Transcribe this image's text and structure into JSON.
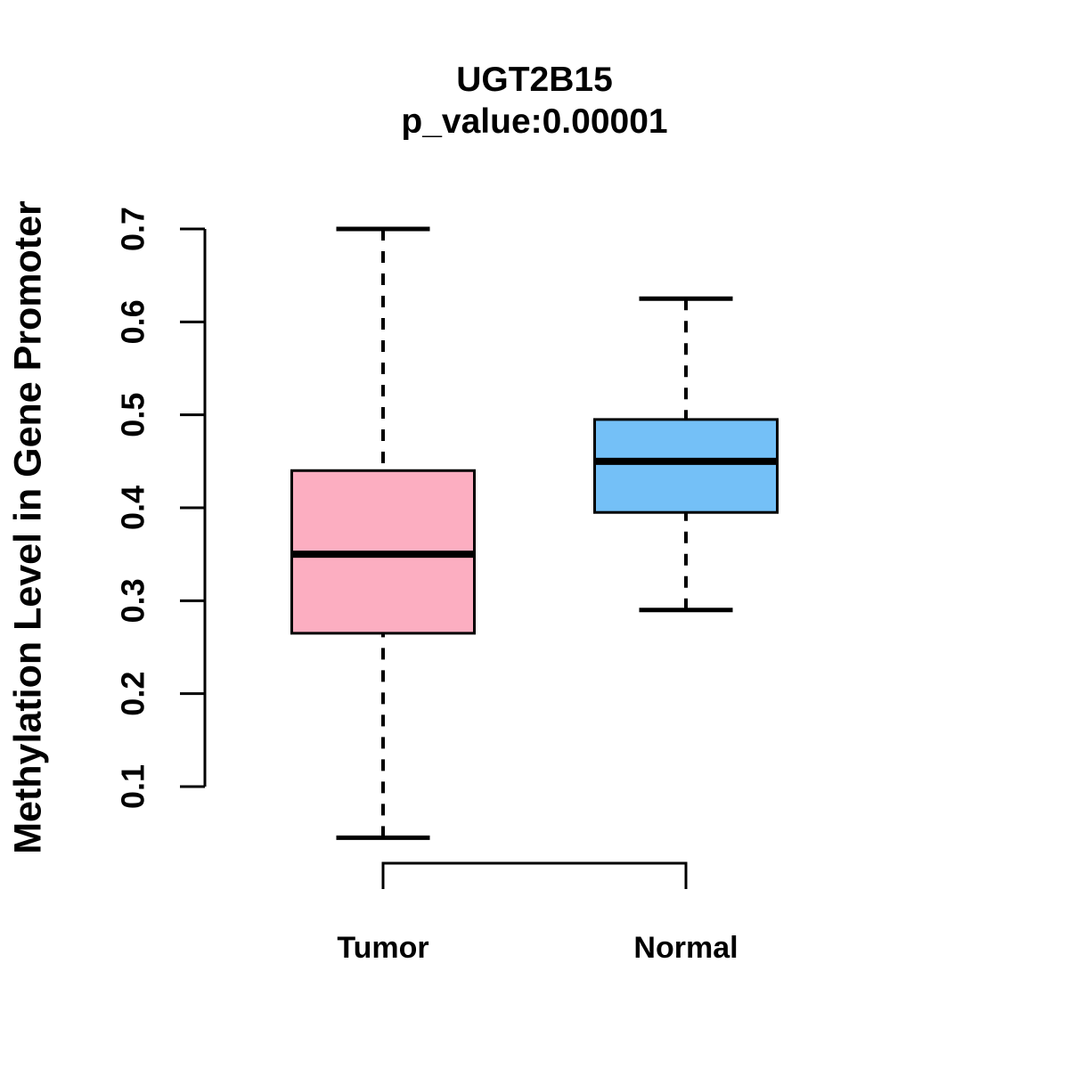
{
  "chart_data": {
    "type": "boxplot",
    "title": "UGT2B15",
    "subtitle": "p_value:0.00001",
    "ylabel": "Methylation Level in Gene Promoter",
    "xlabel": "",
    "yticks": [
      "0.1",
      "0.2",
      "0.3",
      "0.4",
      "0.5",
      "0.6",
      "0.7"
    ],
    "ylim": [
      0.045,
      0.7
    ],
    "grid": false,
    "legend": "none",
    "orientation": "vertical",
    "whisker_style": "dashed",
    "line_color": "#000000",
    "groups": [
      {
        "label": "Tumor",
        "box_color": "#FCAEC1",
        "border_color": "#000000",
        "whisker_low": 0.045,
        "q1": 0.265,
        "median": 0.35,
        "q3": 0.44,
        "whisker_high": 0.7
      },
      {
        "label": "Normal",
        "box_color": "#74C0F7",
        "border_color": "#000000",
        "whisker_low": 0.29,
        "q1": 0.395,
        "median": 0.45,
        "q3": 0.495,
        "whisker_high": 0.625
      }
    ]
  }
}
